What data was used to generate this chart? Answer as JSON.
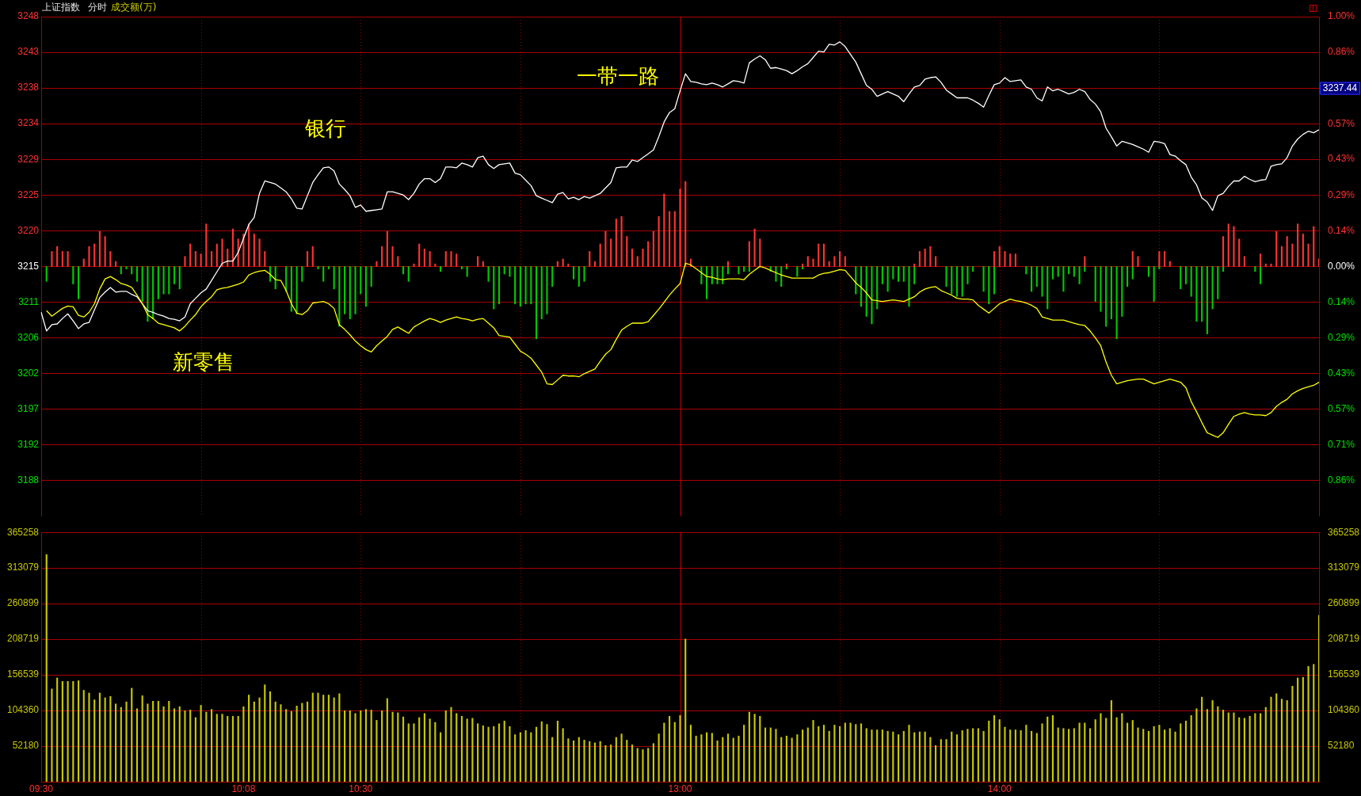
{
  "chart_data": [
    {
      "type": "line",
      "title": "上证指数",
      "subtitle": "分时",
      "categories": [
        null,
        null,
        null,
        null,
        null,
        null,
        null,
        null,
        null,
        null,
        null,
        null,
        null,
        null,
        null,
        null,
        null,
        null,
        null,
        null,
        null,
        null,
        null,
        null,
        null,
        null,
        null,
        null,
        null,
        null,
        null,
        null,
        null,
        null,
        null,
        null,
        null,
        null,
        null,
        null,
        null,
        null,
        null,
        null,
        null,
        null,
        null,
        null,
        null,
        null,
        null,
        null,
        null,
        null,
        null,
        null,
        null,
        null,
        null,
        null,
        null,
        null,
        null,
        null,
        null,
        null,
        null,
        null,
        null,
        null,
        null,
        null,
        null,
        null,
        null,
        null,
        null,
        null,
        null,
        null,
        null,
        null,
        null,
        null,
        null,
        null,
        null,
        null,
        null,
        null,
        null,
        null,
        null,
        null,
        null,
        null,
        null,
        null,
        null,
        null,
        null,
        null,
        null,
        null,
        null,
        null,
        null,
        null,
        null,
        null,
        null,
        null,
        null,
        null,
        null,
        null,
        null,
        null,
        null,
        null,
        null,
        null,
        null,
        null,
        null,
        null,
        null,
        null,
        null,
        null,
        null,
        null,
        null,
        null,
        null,
        null,
        null,
        null,
        null,
        null,
        null,
        null,
        null,
        null,
        null,
        null,
        null,
        null,
        null,
        null,
        null,
        null,
        null,
        null,
        null,
        null,
        null,
        null,
        null,
        null,
        null,
        null,
        null,
        null,
        null,
        null,
        null,
        null,
        null,
        null,
        null,
        null,
        null,
        null,
        null,
        null,
        null,
        null,
        null,
        null,
        null,
        null,
        null,
        null,
        null,
        null,
        null,
        null,
        null,
        null,
        null,
        null,
        null,
        null,
        null,
        null,
        null,
        null,
        null,
        null,
        null,
        null,
        null,
        null,
        null,
        null,
        null,
        null,
        null,
        null,
        null,
        null,
        null,
        null,
        null,
        null,
        null,
        null,
        null,
        null,
        null,
        null,
        null,
        null,
        null,
        null,
        null,
        null,
        null,
        null,
        null,
        null,
        null,
        null,
        null,
        null,
        null,
        null,
        null,
        null,
        null
      ],
      "ylim": [
        3183.25,
        3247.55
      ],
      "yticks": [
        {
          "value": 3187.84,
          "label": "3188"
        },
        {
          "value": 3192.43,
          "label": "3192"
        },
        {
          "value": 3197.03,
          "label": "3197"
        },
        {
          "value": 3201.62,
          "label": "3202"
        },
        {
          "value": 3206.21,
          "label": "3206"
        },
        {
          "value": 3210.81,
          "label": "3211"
        },
        {
          "value": 3215.4,
          "label": "3215"
        },
        {
          "value": 3219.99,
          "label": "3220"
        },
        {
          "value": 3224.59,
          "label": "3225"
        },
        {
          "value": 3229.18,
          "label": "3229"
        },
        {
          "value": 3233.77,
          "label": "3234"
        },
        {
          "value": 3238.37,
          "label": "3238"
        },
        {
          "value": 3242.96,
          "label": "3243"
        },
        {
          "value": 3247.55,
          "label": "3248"
        }
      ],
      "y2lim": [
        -1.0,
        1.0
      ],
      "y2ticks": [
        {
          "value": -0.857,
          "label": "0.86%"
        },
        {
          "value": -0.714,
          "label": "0.71%"
        },
        {
          "value": -0.571,
          "label": "0.57%"
        },
        {
          "value": -0.429,
          "label": "0.43%"
        },
        {
          "value": -0.286,
          "label": "0.29%"
        },
        {
          "value": -0.143,
          "label": "0.14%"
        },
        {
          "value": 0,
          "label": "0.00%"
        },
        {
          "value": 0.143,
          "label": "0.14%"
        },
        {
          "value": 0.286,
          "label": "0.29%"
        },
        {
          "value": 0.429,
          "label": "0.43%"
        },
        {
          "value": 0.571,
          "label": "0.57%"
        },
        {
          "value": 0.714,
          "label": null
        },
        {
          "value": 0.857,
          "label": "0.86%"
        },
        {
          "value": 1.0,
          "label": "1.00%"
        }
      ],
      "tick_labels": "y",
      "grid": "y",
      "legend": false,
      "annotations": [
        "成交额(万)",
        "银行",
        "一带一路",
        "新零售",
        "3237.44"
      ],
      "series": [
        {
          "type": "bar",
          "axis": "y2",
          "color": "#ff3232",
          "values": [
            null,
            null,
            0.06,
            0.08,
            0.06,
            0.06,
            null,
            null,
            0.03,
            0.08,
            0.09,
            0.14,
            0.12,
            0.06,
            0.02,
            null,
            null,
            null,
            null,
            null,
            null,
            null,
            null,
            null,
            null,
            null,
            null,
            0.04,
            0.09,
            0.06,
            0.05,
            0.17,
            0.06,
            0.09,
            0.11,
            0.07,
            0.15,
            0.11,
            0.13,
            0.17,
            0.13,
            0.11,
            0.06,
            null,
            null,
            null,
            null,
            null,
            null,
            null,
            0.06,
            0.08,
            null,
            null,
            null,
            null,
            null,
            null,
            null,
            null,
            null,
            null,
            null,
            0.02,
            0.08,
            0.14,
            0.08,
            0.04,
            null,
            null,
            0.01,
            0.09,
            0.07,
            0.06,
            0.01,
            null,
            0.06,
            0.06,
            0.05,
            null,
            null,
            null,
            0.04,
            0.02,
            null,
            null,
            null,
            null,
            null,
            null,
            null,
            null,
            null,
            null,
            null,
            null,
            null,
            0.02,
            0.03,
            0.01,
            null,
            null,
            null,
            0.06,
            0.02,
            0.09,
            0.14,
            0.11,
            0.19,
            0.2,
            0.12,
            0.07,
            0.04,
            0.07,
            0.1,
            0.14,
            0.2,
            0.29,
            0.22,
            0.22,
            0.31,
            0.34,
            0.03,
            null,
            null,
            null,
            null,
            null,
            null,
            0.02,
            null,
            null,
            null,
            0.1,
            0.15,
            0.11,
            null,
            null,
            null,
            null,
            0.01,
            null,
            null,
            0.01,
            0.04,
            0.03,
            0.09,
            0.09,
            0.02,
            0.04,
            0.06,
            0.04,
            null,
            null,
            null,
            null,
            null,
            null,
            null,
            null,
            null,
            null,
            null,
            null,
            0.01,
            0.06,
            0.07,
            0.08,
            0.04,
            null,
            null,
            null,
            null,
            null,
            null,
            null,
            null,
            null,
            null,
            0.06,
            0.08,
            0.06,
            0.05,
            0.05,
            null,
            null,
            null,
            null,
            null,
            null,
            null,
            null,
            null,
            null,
            null,
            null,
            0.04,
            null,
            null,
            null,
            null,
            null,
            null,
            null,
            null,
            0.06,
            0.04,
            null,
            null,
            null,
            0.06,
            0.06,
            0.02,
            null,
            null,
            null,
            null,
            null,
            null,
            null,
            null,
            null,
            0.12,
            0.17,
            0.16,
            0.11,
            0.04,
            null,
            null,
            0.05,
            0.01,
            0.01,
            0.14,
            0.08,
            0.12,
            0.09,
            0.17,
            0.13,
            0.09,
            0.16,
            0.03
          ]
        },
        {
          "type": "bar",
          "axis": "y2",
          "color": "#00c800",
          "values": [
            null,
            -0.06,
            null,
            null,
            null,
            null,
            -0.07,
            -0.13,
            null,
            null,
            null,
            null,
            null,
            null,
            null,
            -0.03,
            -0.01,
            -0.03,
            -0.06,
            -0.14,
            -0.22,
            -0.21,
            -0.13,
            -0.11,
            -0.11,
            -0.07,
            -0.09,
            null,
            null,
            null,
            null,
            null,
            null,
            null,
            null,
            null,
            null,
            null,
            null,
            null,
            null,
            null,
            null,
            -0.06,
            -0.09,
            null,
            -0.1,
            -0.18,
            -0.19,
            -0.06,
            null,
            null,
            -0.01,
            -0.06,
            -0.01,
            -0.09,
            -0.24,
            -0.19,
            -0.21,
            -0.19,
            -0.11,
            -0.16,
            -0.08,
            null,
            null,
            null,
            null,
            null,
            -0.03,
            -0.06,
            null,
            null,
            null,
            null,
            null,
            -0.02,
            null,
            null,
            null,
            -0.01,
            -0.04,
            null,
            null,
            null,
            -0.06,
            -0.17,
            -0.15,
            -0.03,
            -0.04,
            -0.15,
            -0.16,
            -0.15,
            -0.15,
            -0.29,
            -0.21,
            -0.19,
            -0.08,
            null,
            null,
            null,
            -0.05,
            -0.08,
            -0.06,
            null,
            null,
            null,
            null,
            null,
            null,
            null,
            null,
            null,
            null,
            null,
            null,
            null,
            null,
            null,
            null,
            null,
            null,
            null,
            null,
            null,
            -0.07,
            -0.13,
            -0.07,
            -0.07,
            -0.07,
            -0.03,
            null,
            -0.03,
            -0.02,
            -0.02,
            null,
            null,
            null,
            -0.02,
            -0.06,
            -0.08,
            -0.01,
            null,
            -0.04,
            -0.01,
            null,
            null,
            null,
            null,
            null,
            null,
            null,
            null,
            null,
            -0.11,
            -0.16,
            -0.2,
            -0.23,
            -0.17,
            -0.07,
            -0.1,
            -0.05,
            -0.06,
            -0.06,
            -0.16,
            -0.07,
            null,
            null,
            null,
            null,
            null,
            -0.08,
            -0.11,
            -0.12,
            -0.12,
            -0.07,
            -0.02,
            null,
            -0.1,
            -0.15,
            -0.11,
            null,
            null,
            null,
            null,
            null,
            -0.03,
            -0.1,
            -0.08,
            -0.12,
            -0.17,
            -0.05,
            -0.04,
            -0.1,
            -0.03,
            -0.04,
            -0.07,
            -0.02,
            null,
            -0.14,
            -0.18,
            -0.24,
            -0.21,
            -0.29,
            -0.2,
            -0.08,
            -0.05,
            null,
            null,
            -0.04,
            -0.14,
            -0.01,
            null,
            null,
            null,
            -0.09,
            -0.07,
            -0.12,
            -0.22,
            -0.22,
            -0.27,
            -0.17,
            -0.13,
            -0.02,
            null,
            null,
            null,
            null,
            null,
            -0.02,
            -0.07,
            null,
            null,
            null,
            null,
            null,
            null,
            null,
            null,
            null,
            null,
            null
          ]
        },
        {
          "type": "line",
          "color": "#ffff00",
          "values": [
            null,
            3209.7,
            3209.0,
            3209.5,
            3210.0,
            3210.3,
            3210.2,
            3209.1,
            3208.9,
            3209.5,
            3210.6,
            3212.5,
            3213.8,
            3214.1,
            3213.7,
            3213.2,
            3213.0,
            3212.7,
            3211.7,
            3210.6,
            3209.2,
            3208.7,
            3208.1,
            3207.9,
            3207.7,
            3207.5,
            3207.1,
            3207.7,
            3208.5,
            3209.2,
            3210.2,
            3210.9,
            3211.5,
            3212.4,
            3212.6,
            3212.7,
            3212.9,
            3213.1,
            3213.4,
            3214.3,
            3214.6,
            3214.8,
            3214.9,
            3214.4,
            3213.7,
            3213.6,
            3212.3,
            3210.6,
            3209.4,
            3209.2,
            3209.7,
            3210.7,
            3210.8,
            3210.9,
            3210.6,
            3210.0,
            3207.9,
            3207.3,
            3206.6,
            3205.8,
            3205.2,
            3204.7,
            3204.4,
            3205.2,
            3205.8,
            3206.4,
            3207.3,
            3207.6,
            3207.2,
            3206.8,
            3207.6,
            3208.0,
            3208.4,
            3208.7,
            3208.5,
            3208.2,
            3208.5,
            3208.7,
            3208.9,
            3208.7,
            3208.6,
            3208.4,
            3208.6,
            3208.7,
            3208.1,
            3207.5,
            3206.5,
            3206.4,
            3206.3,
            3205.4,
            3204.5,
            3204.1,
            3203.6,
            3202.7,
            3201.8,
            3200.3,
            3200.2,
            3200.8,
            3201.4,
            3201.3,
            3201.3,
            3201.2,
            3201.6,
            3201.9,
            3202.2,
            3203.2,
            3204.1,
            3204.7,
            3206.0,
            3207.2,
            3207.7,
            3208.1,
            3208.1,
            3208.1,
            3208.3,
            3209.1,
            3209.9,
            3210.8,
            3211.7,
            3212.5,
            3213.2,
            3215.8,
            3215.6,
            3215.1,
            3214.6,
            3214.1,
            3214.0,
            3213.8,
            3213.7,
            3213.8,
            3213.8,
            3213.8,
            3213.7,
            3214.4,
            3214.9,
            3215.4,
            3215.2,
            3214.9,
            3214.6,
            3214.3,
            3214.1,
            3213.9,
            3213.9,
            3213.9,
            3213.9,
            3213.9,
            3214.3,
            3214.5,
            3214.6,
            3214.8,
            3215.0,
            3214.9,
            3214.1,
            3213.3,
            3212.7,
            3212.0,
            3211.1,
            3211.0,
            3210.9,
            3211.0,
            3211.1,
            3211.0,
            3210.9,
            3211.2,
            3211.5,
            3212.1,
            3212.5,
            3212.7,
            3212.8,
            3212.3,
            3212.0,
            3211.7,
            3211.3,
            3211.2,
            3211.2,
            3211.1,
            3210.4,
            3209.9,
            3209.4,
            3210.0,
            3210.6,
            3210.9,
            3211.2,
            3211.0,
            3210.9,
            3210.7,
            3210.4,
            3210.0,
            3208.9,
            3208.7,
            3208.5,
            3208.5,
            3208.5,
            3208.3,
            3208.1,
            3207.9,
            3207.8,
            3207.1,
            3206.2,
            3205.2,
            3203.1,
            3201.4,
            3200.3,
            3200.5,
            3200.7,
            3200.8,
            3200.9,
            3200.9,
            3200.6,
            3200.3,
            3200.5,
            3200.7,
            3200.9,
            3200.7,
            3200.5,
            3199.8,
            3198.0,
            3196.7,
            3195.3,
            3194.0,
            3193.7,
            3193.4,
            3194.0,
            3195.1,
            3196.1,
            3196.4,
            3196.6,
            3196.4,
            3196.3,
            3196.3,
            3196.2,
            3196.6,
            3197.4,
            3197.9,
            3198.3,
            3199.0,
            3199.4,
            3199.7,
            3199.9,
            3200.1,
            3200.5
          ]
        },
        {
          "type": "line",
          "color": "#ffffff",
          "values": [
            3209.5,
            3207.1,
            3207.9,
            3208.0,
            3208.7,
            3209.3,
            3208.4,
            3207.4,
            3208.0,
            3208.2,
            3209.8,
            3211.4,
            3212.1,
            3212.7,
            3212.1,
            3212.2,
            3212.2,
            3211.8,
            3211.5,
            3210.6,
            3209.7,
            3209.5,
            3209.2,
            3209.0,
            3208.7,
            3208.6,
            3208.4,
            3208.9,
            3210.6,
            3211.3,
            3212.0,
            3212.5,
            3213.6,
            3214.7,
            3215.8,
            3216.1,
            3216.1,
            3217.2,
            3219.0,
            3220.8,
            3221.7,
            3224.8,
            3226.4,
            3226.2,
            3226.0,
            3225.5,
            3225.0,
            3224.1,
            3222.9,
            3222.8,
            3224.5,
            3226.2,
            3227.2,
            3228.1,
            3228.2,
            3227.7,
            3226.0,
            3225.3,
            3224.5,
            3223.0,
            3223.3,
            3222.5,
            3222.6,
            3222.7,
            3222.8,
            3225.0,
            3225.0,
            3224.8,
            3224.6,
            3224.0,
            3224.8,
            3226.0,
            3226.7,
            3226.7,
            3226.2,
            3226.7,
            3228.2,
            3228.2,
            3228.1,
            3228.7,
            3228.5,
            3228.2,
            3229.4,
            3229.6,
            3228.5,
            3228.0,
            3228.5,
            3228.6,
            3228.7,
            3227.4,
            3227.2,
            3226.5,
            3225.8,
            3224.5,
            3224.2,
            3223.9,
            3223.6,
            3224.7,
            3224.9,
            3224.1,
            3224.3,
            3224.0,
            3224.4,
            3224.2,
            3224.5,
            3224.8,
            3225.5,
            3226.2,
            3228.1,
            3228.2,
            3228.2,
            3229.1,
            3228.9,
            3229.4,
            3229.9,
            3230.4,
            3232.1,
            3234.0,
            3235.2,
            3235.7,
            3238.0,
            3240.2,
            3239.2,
            3239.1,
            3238.9,
            3238.8,
            3239.0,
            3238.8,
            3238.5,
            3238.9,
            3239.3,
            3239.2,
            3239.0,
            3241.6,
            3242.1,
            3242.5,
            3242.0,
            3240.9,
            3241.0,
            3240.8,
            3240.6,
            3240.2,
            3240.6,
            3241.1,
            3241.5,
            3242.3,
            3243.1,
            3243.0,
            3244.0,
            3243.9,
            3244.3,
            3243.7,
            3242.7,
            3241.7,
            3240.2,
            3238.7,
            3238.2,
            3237.3,
            3237.6,
            3237.9,
            3237.6,
            3237.3,
            3236.6,
            3237.6,
            3238.5,
            3238.7,
            3239.5,
            3239.7,
            3239.8,
            3239.1,
            3238.1,
            3237.6,
            3237.1,
            3237.1,
            3237.1,
            3236.8,
            3236.4,
            3235.9,
            3237.4,
            3238.8,
            3239.0,
            3239.7,
            3239.2,
            3239.3,
            3239.4,
            3238.5,
            3238.2,
            3237.1,
            3236.7,
            3238.5,
            3238.0,
            3238.2,
            3237.9,
            3237.6,
            3237.8,
            3238.2,
            3237.9,
            3236.9,
            3236.3,
            3235.3,
            3233.2,
            3232.1,
            3230.9,
            3231.5,
            3231.3,
            3231.1,
            3230.8,
            3230.5,
            3230.1,
            3231.5,
            3231.4,
            3231.2,
            3229.8,
            3229.6,
            3229.0,
            3228.5,
            3226.9,
            3225.9,
            3224.2,
            3223.7,
            3222.6,
            3224.5,
            3224.8,
            3225.7,
            3226.4,
            3226.4,
            3227.0,
            3226.6,
            3226.3,
            3226.5,
            3226.6,
            3228.3,
            3228.5,
            3228.6,
            3229.4,
            3230.9,
            3231.8,
            3232.4,
            3232.8,
            3232.6,
            3233.0
          ]
        }
      ]
    },
    {
      "type": "bar",
      "color": "#c8c800",
      "categories": [
        "09:30",
        null,
        null,
        null,
        null,
        null,
        null,
        null,
        null,
        null,
        null,
        null,
        null,
        null,
        null,
        null,
        null,
        null,
        null,
        null,
        null,
        null,
        null,
        null,
        null,
        null,
        null,
        null,
        null,
        null,
        null,
        null,
        null,
        null,
        null,
        null,
        null,
        null,
        "10:08",
        null,
        null,
        null,
        null,
        null,
        null,
        null,
        null,
        null,
        null,
        null,
        null,
        null,
        null,
        null,
        null,
        null,
        null,
        null,
        null,
        null,
        "10:30",
        null,
        null,
        null,
        null,
        null,
        null,
        null,
        null,
        null,
        null,
        null,
        null,
        null,
        null,
        null,
        null,
        null,
        null,
        null,
        null,
        null,
        null,
        null,
        null,
        null,
        null,
        null,
        null,
        null,
        null,
        null,
        null,
        null,
        null,
        null,
        null,
        null,
        null,
        null,
        null,
        null,
        null,
        null,
        null,
        null,
        null,
        null,
        null,
        null,
        null,
        null,
        null,
        null,
        null,
        null,
        null,
        null,
        null,
        null,
        "13:00",
        null,
        null,
        null,
        null,
        null,
        null,
        null,
        null,
        null,
        null,
        null,
        null,
        null,
        null,
        null,
        null,
        null,
        null,
        null,
        null,
        null,
        null,
        null,
        null,
        null,
        null,
        null,
        null,
        null,
        null,
        null,
        null,
        null,
        null,
        null,
        null,
        null,
        null,
        null,
        null,
        null,
        null,
        null,
        null,
        null,
        null,
        null,
        null,
        null,
        null,
        null,
        null,
        null,
        null,
        null,
        null,
        null,
        null,
        null,
        "14:00",
        null,
        null,
        null,
        null,
        null,
        null,
        null,
        null,
        null,
        null,
        null,
        null,
        null,
        null,
        null,
        null,
        null,
        null,
        null,
        null,
        null,
        null,
        null,
        null,
        null,
        null,
        null,
        null,
        null,
        null,
        null,
        null,
        null,
        null,
        null,
        null,
        null,
        null,
        null,
        null,
        null,
        null,
        null,
        null,
        null,
        null,
        null,
        null,
        null,
        null,
        null,
        null,
        null,
        null,
        null,
        null,
        null,
        null,
        null,
        null
      ],
      "ylim": [
        0,
        365258
      ],
      "yticks": [
        52180,
        104360,
        156539,
        208719,
        260899,
        313079,
        365258
      ],
      "y2lim": [
        0,
        365258
      ],
      "y2ticks": [
        52180,
        104360,
        156539,
        208719,
        260899,
        313079,
        365258
      ],
      "grid": "y",
      "legend": false,
      "values": [
        null,
        333000,
        136000,
        152000,
        147000,
        147000,
        147000,
        148000,
        134000,
        130000,
        120000,
        130000,
        123000,
        125000,
        114000,
        109000,
        117000,
        137000,
        107000,
        126000,
        114000,
        118000,
        118000,
        110000,
        118000,
        107000,
        110000,
        104000,
        105000,
        94000,
        112000,
        102000,
        106000,
        99000,
        99000,
        96000,
        96000,
        96000,
        110000,
        127000,
        117000,
        123000,
        142000,
        132000,
        117000,
        113000,
        106000,
        103000,
        111000,
        115000,
        117000,
        130000,
        130000,
        127000,
        127000,
        123000,
        129000,
        104000,
        104000,
        100000,
        104000,
        106000,
        105000,
        90000,
        104000,
        122000,
        102000,
        101000,
        95000,
        85000,
        85000,
        94000,
        100000,
        92000,
        87000,
        72000,
        104000,
        109000,
        100000,
        96000,
        92000,
        93000,
        85000,
        82000,
        80000,
        81000,
        85000,
        89000,
        81000,
        69000,
        72000,
        75000,
        72000,
        80000,
        88000,
        84000,
        65000,
        89000,
        78000,
        63000,
        60000,
        65000,
        61000,
        59000,
        57000,
        59000,
        53000,
        54000,
        65000,
        70000,
        61000,
        54000,
        49000,
        47000,
        49000,
        56000,
        70000,
        86000,
        96000,
        87000,
        97000,
        209000,
        83000,
        67000,
        69000,
        72000,
        71000,
        60000,
        65000,
        70000,
        64000,
        67000,
        83000,
        102000,
        99000,
        96000,
        79000,
        79000,
        77000,
        65000,
        67000,
        64000,
        69000,
        76000,
        79000,
        90000,
        81000,
        83000,
        74000,
        83000,
        81000,
        86000,
        86000,
        84000,
        85000,
        78000,
        76000,
        76000,
        76000,
        74000,
        73000,
        69000,
        74000,
        83000,
        72000,
        73000,
        73000,
        65000,
        53000,
        62000,
        62000,
        73000,
        69000,
        75000,
        77000,
        78000,
        78000,
        74000,
        89000,
        97000,
        91000,
        80000,
        76000,
        76000,
        75000,
        83000,
        74000,
        71000,
        85000,
        95000,
        97000,
        79000,
        78000,
        77000,
        78000,
        86000,
        86000,
        78000,
        91000,
        100000,
        93000,
        119000,
        94000,
        100000,
        86000,
        90000,
        79000,
        77000,
        74000,
        81000,
        83000,
        76000,
        78000,
        73000,
        85000,
        89000,
        97000,
        107000,
        124000,
        106000,
        119000,
        110000,
        105000,
        101000,
        101000,
        94000,
        93000,
        96000,
        100000,
        100000,
        109000,
        124000,
        129000,
        121000,
        119000,
        140000,
        152000,
        153000,
        169000,
        172000,
        244000
      ]
    }
  ]
}
